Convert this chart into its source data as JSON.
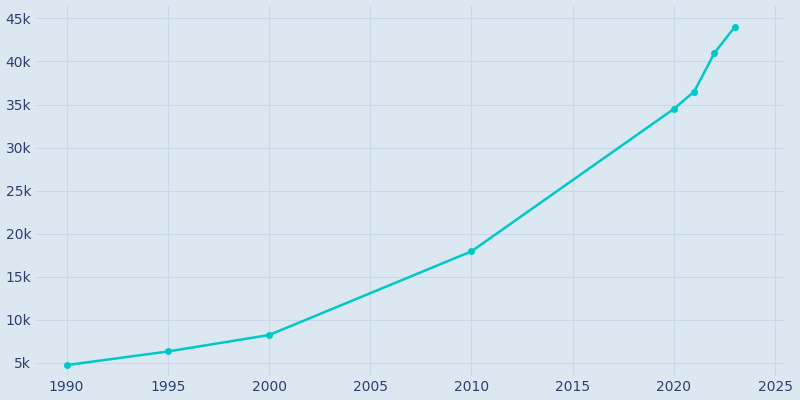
{
  "years": [
    1990,
    1995,
    2000,
    2010,
    2020,
    2021,
    2022,
    2023
  ],
  "population": [
    4715,
    6300,
    8212,
    17937,
    34500,
    36500,
    41000,
    44000
  ],
  "line_color": "#00c8c8",
  "marker_color": "#00c8c8",
  "background_color": "#dce8f1",
  "grid_color": "#c8d8e8",
  "tick_color": "#2e3f6e",
  "xlim": [
    1988.5,
    2025.5
  ],
  "ylim": [
    3500,
    46500
  ],
  "xticks": [
    1990,
    1995,
    2000,
    2005,
    2010,
    2015,
    2020,
    2025
  ],
  "yticks": [
    5000,
    10000,
    15000,
    20000,
    25000,
    30000,
    35000,
    40000,
    45000
  ],
  "figure_bg": "#dce8f1",
  "linewidth": 1.8,
  "markersize": 4
}
